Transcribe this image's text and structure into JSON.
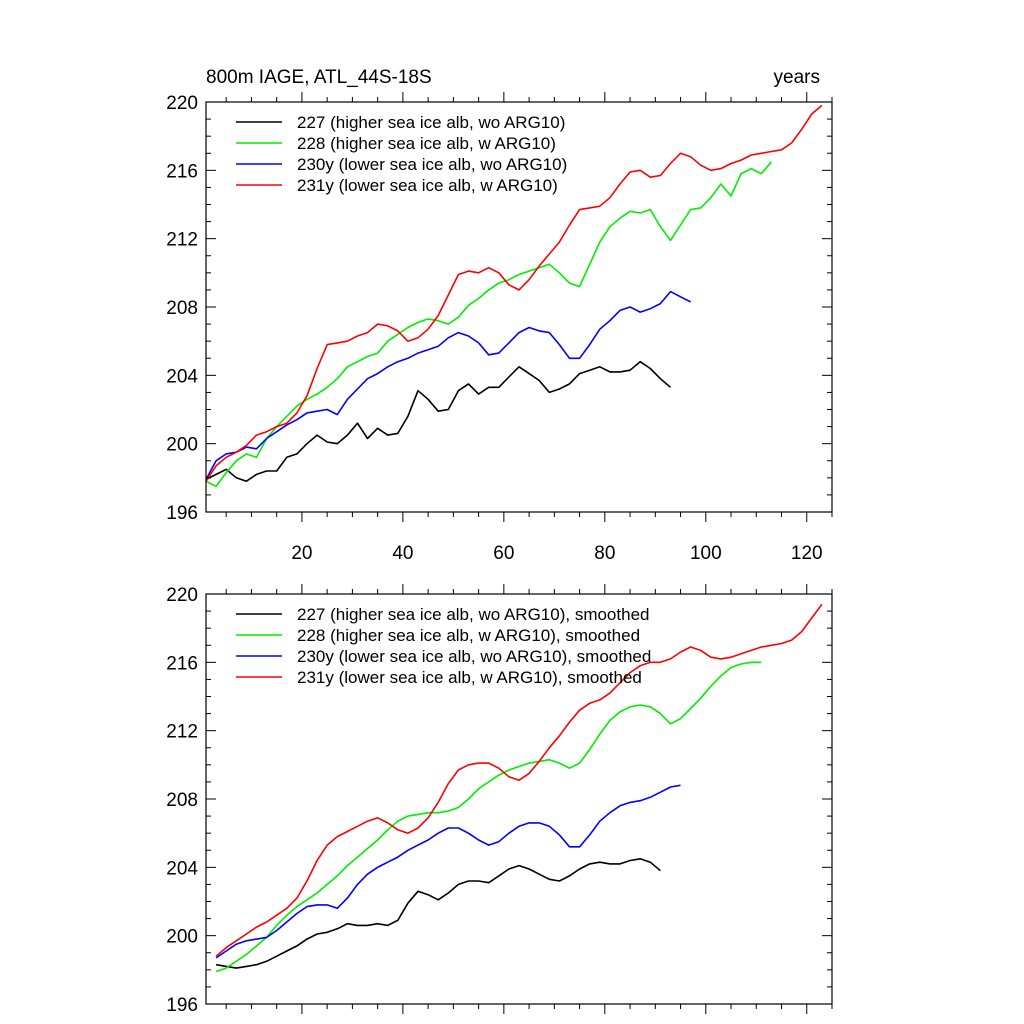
{
  "chart_data": [
    {
      "type": "line",
      "title": "800m IAGE, ATL_44S-18S",
      "title_right": "years",
      "xlim": [
        1,
        125
      ],
      "ylim": [
        196,
        220
      ],
      "xticks": [
        20,
        40,
        60,
        80,
        100,
        120
      ],
      "yticks": [
        196,
        200,
        204,
        208,
        212,
        216,
        220
      ],
      "show_xtick_labels": true,
      "legend_position": "top-left",
      "series": [
        {
          "name": "227 (higher sea ice alb, wo ARG10)",
          "color": "#000000",
          "x": [
            1,
            3,
            5,
            7,
            9,
            11,
            13,
            15,
            17,
            19,
            21,
            23,
            25,
            27,
            29,
            31,
            33,
            35,
            37,
            39,
            41,
            43,
            45,
            47,
            49,
            51,
            53,
            55,
            57,
            59,
            61,
            63,
            65,
            67,
            69,
            71,
            73,
            75,
            77,
            79,
            81,
            83,
            85,
            87,
            89,
            91,
            93
          ],
          "y": [
            197.9,
            198.2,
            198.5,
            198.0,
            197.8,
            198.2,
            198.4,
            198.4,
            199.2,
            199.4,
            200.0,
            200.5,
            200.1,
            200.0,
            200.5,
            201.2,
            200.3,
            200.9,
            200.5,
            200.6,
            201.6,
            203.1,
            202.6,
            201.9,
            202.0,
            203.1,
            203.5,
            202.9,
            203.3,
            203.3,
            203.9,
            204.5,
            204.1,
            203.7,
            203.0,
            203.2,
            203.5,
            204.1,
            204.3,
            204.5,
            204.2,
            204.2,
            204.3,
            204.8,
            204.4,
            203.8,
            203.3
          ]
        },
        {
          "name": "228 (higher sea ice alb, w ARG10)",
          "color": "#00ee00",
          "x": [
            1,
            3,
            5,
            7,
            9,
            11,
            13,
            15,
            17,
            19,
            21,
            23,
            25,
            27,
            29,
            31,
            33,
            35,
            37,
            39,
            41,
            43,
            45,
            47,
            49,
            51,
            53,
            55,
            57,
            59,
            61,
            63,
            65,
            67,
            69,
            71,
            73,
            75,
            77,
            79,
            81,
            83,
            85,
            87,
            89,
            91,
            93,
            95,
            97,
            99,
            101,
            103,
            105,
            107,
            109,
            111,
            113
          ],
          "y": [
            197.8,
            197.5,
            198.3,
            199.0,
            199.4,
            199.2,
            200.3,
            201.0,
            201.6,
            202.2,
            202.6,
            202.9,
            203.3,
            203.8,
            204.5,
            204.8,
            205.1,
            205.3,
            206.0,
            206.4,
            206.8,
            207.1,
            207.3,
            207.2,
            207.0,
            207.4,
            208.1,
            208.5,
            209.0,
            209.4,
            209.6,
            209.9,
            210.1,
            210.3,
            210.5,
            210.0,
            209.4,
            209.2,
            210.5,
            211.8,
            212.7,
            213.2,
            213.6,
            213.5,
            213.7,
            212.7,
            211.9,
            212.8,
            213.7,
            213.8,
            214.4,
            215.2,
            214.5,
            215.8,
            216.1,
            215.8,
            216.5
          ]
        },
        {
          "name": "230y (lower sea ice alb, wo ARG10)",
          "color": "#0000ff",
          "x": [
            1,
            3,
            5,
            7,
            9,
            11,
            13,
            15,
            17,
            19,
            21,
            23,
            25,
            27,
            29,
            31,
            33,
            35,
            37,
            39,
            41,
            43,
            45,
            47,
            49,
            51,
            53,
            55,
            57,
            59,
            61,
            63,
            65,
            67,
            69,
            71,
            73,
            75,
            77,
            79,
            81,
            83,
            85,
            87,
            89,
            91,
            93,
            95,
            97
          ],
          "y": [
            197.9,
            199.0,
            199.4,
            199.5,
            199.8,
            199.7,
            200.3,
            200.7,
            201.1,
            201.4,
            201.8,
            201.9,
            202.0,
            201.7,
            202.6,
            203.2,
            203.8,
            204.1,
            204.5,
            204.8,
            205.0,
            205.3,
            205.5,
            205.7,
            206.2,
            206.5,
            206.3,
            205.9,
            205.2,
            205.3,
            205.9,
            206.5,
            206.8,
            206.6,
            206.5,
            205.8,
            205.0,
            205.0,
            205.8,
            206.7,
            207.2,
            207.8,
            208.0,
            207.7,
            207.9,
            208.2,
            208.9,
            208.6,
            208.3
          ]
        },
        {
          "name": "231y (lower sea ice alb, w ARG10)",
          "color": "#ff0000",
          "x": [
            1,
            3,
            5,
            7,
            9,
            11,
            13,
            15,
            17,
            19,
            21,
            23,
            25,
            27,
            29,
            31,
            33,
            35,
            37,
            39,
            41,
            43,
            45,
            47,
            49,
            51,
            53,
            55,
            57,
            59,
            61,
            63,
            65,
            67,
            69,
            71,
            73,
            75,
            77,
            79,
            81,
            83,
            85,
            87,
            89,
            91,
            93,
            95,
            97,
            99,
            101,
            103,
            105,
            107,
            109,
            111,
            113,
            115,
            117,
            119,
            121,
            123
          ],
          "y": [
            197.8,
            198.7,
            199.2,
            199.5,
            199.9,
            200.5,
            200.7,
            201.0,
            201.2,
            201.8,
            202.8,
            204.4,
            205.8,
            205.9,
            206.0,
            206.3,
            206.5,
            207.0,
            206.9,
            206.6,
            206.0,
            206.2,
            206.7,
            207.5,
            208.7,
            209.9,
            210.1,
            210.0,
            210.3,
            210.0,
            209.3,
            209.0,
            209.6,
            210.4,
            211.1,
            211.8,
            212.8,
            213.7,
            213.8,
            213.9,
            214.4,
            215.2,
            215.9,
            216.0,
            215.6,
            215.7,
            216.4,
            217.0,
            216.8,
            216.3,
            216.0,
            216.1,
            216.4,
            216.6,
            216.9,
            217.0,
            217.1,
            217.2,
            217.6,
            218.4,
            219.3,
            219.8
          ]
        }
      ]
    },
    {
      "type": "line",
      "title": "",
      "xlim": [
        1,
        125
      ],
      "ylim": [
        196,
        220
      ],
      "xticks": [
        20,
        40,
        60,
        80,
        100,
        120
      ],
      "yticks": [
        196,
        200,
        204,
        208,
        212,
        216,
        220
      ],
      "show_xtick_labels": false,
      "legend_position": "top-left",
      "series": [
        {
          "name": "227 (higher sea ice alb, wo ARG10), smoothed",
          "color": "#000000",
          "x": [
            3,
            5,
            7,
            9,
            11,
            13,
            15,
            17,
            19,
            21,
            23,
            25,
            27,
            29,
            31,
            33,
            35,
            37,
            39,
            41,
            43,
            45,
            47,
            49,
            51,
            53,
            55,
            57,
            59,
            61,
            63,
            65,
            67,
            69,
            71,
            73,
            75,
            77,
            79,
            81,
            83,
            85,
            87,
            89,
            91
          ],
          "y": [
            198.3,
            198.2,
            198.1,
            198.2,
            198.3,
            198.5,
            198.8,
            199.1,
            199.4,
            199.8,
            200.1,
            200.2,
            200.4,
            200.7,
            200.6,
            200.6,
            200.7,
            200.6,
            200.9,
            201.9,
            202.6,
            202.4,
            202.1,
            202.5,
            203.0,
            203.2,
            203.2,
            203.1,
            203.5,
            203.9,
            204.1,
            203.9,
            203.6,
            203.3,
            203.2,
            203.5,
            203.9,
            204.2,
            204.3,
            204.2,
            204.2,
            204.4,
            204.5,
            204.3,
            203.8
          ]
        },
        {
          "name": "228 (higher sea ice alb, w ARG10), smoothed",
          "color": "#00ee00",
          "x": [
            3,
            5,
            7,
            9,
            11,
            13,
            15,
            17,
            19,
            21,
            23,
            25,
            27,
            29,
            31,
            33,
            35,
            37,
            39,
            41,
            43,
            45,
            47,
            49,
            51,
            53,
            55,
            57,
            59,
            61,
            63,
            65,
            67,
            69,
            71,
            73,
            75,
            77,
            79,
            81,
            83,
            85,
            87,
            89,
            91,
            93,
            95,
            97,
            99,
            101,
            103,
            105,
            107,
            109,
            111
          ],
          "y": [
            197.9,
            198.1,
            198.5,
            198.9,
            199.4,
            199.9,
            200.6,
            201.2,
            201.7,
            202.1,
            202.5,
            203.0,
            203.5,
            204.1,
            204.6,
            205.1,
            205.6,
            206.2,
            206.7,
            207.0,
            207.1,
            207.2,
            207.2,
            207.3,
            207.5,
            208.0,
            208.6,
            209.0,
            209.4,
            209.7,
            209.9,
            210.1,
            210.2,
            210.3,
            210.1,
            209.8,
            210.1,
            210.9,
            211.8,
            212.6,
            213.1,
            213.4,
            213.5,
            213.4,
            213.0,
            212.4,
            212.7,
            213.3,
            213.9,
            214.6,
            215.2,
            215.7,
            215.9,
            216.0,
            216.0
          ]
        },
        {
          "name": "230y (lower sea ice alb, wo ARG10), smoothed",
          "color": "#0000ff",
          "x": [
            3,
            5,
            7,
            9,
            11,
            13,
            15,
            17,
            19,
            21,
            23,
            25,
            27,
            29,
            31,
            33,
            35,
            37,
            39,
            41,
            43,
            45,
            47,
            49,
            51,
            53,
            55,
            57,
            59,
            61,
            63,
            65,
            67,
            69,
            71,
            73,
            75,
            77,
            79,
            81,
            83,
            85,
            87,
            89,
            91,
            93,
            95
          ],
          "y": [
            198.7,
            199.1,
            199.5,
            199.7,
            199.8,
            199.9,
            200.3,
            200.8,
            201.3,
            201.7,
            201.8,
            201.8,
            201.6,
            202.2,
            203.0,
            203.6,
            204.0,
            204.3,
            204.6,
            205.0,
            205.3,
            205.6,
            206.0,
            206.3,
            206.3,
            206.0,
            205.6,
            205.3,
            205.5,
            206.0,
            206.4,
            206.6,
            206.6,
            206.4,
            205.9,
            205.2,
            205.2,
            205.9,
            206.7,
            207.2,
            207.6,
            207.8,
            207.9,
            208.1,
            208.4,
            208.7,
            208.8
          ]
        },
        {
          "name": "231y (lower sea ice alb, w ARG10), smoothed",
          "color": "#ff0000",
          "x": [
            3,
            5,
            7,
            9,
            11,
            13,
            15,
            17,
            19,
            21,
            23,
            25,
            27,
            29,
            31,
            33,
            35,
            37,
            39,
            41,
            43,
            45,
            47,
            49,
            51,
            53,
            55,
            57,
            59,
            61,
            63,
            65,
            67,
            69,
            71,
            73,
            75,
            77,
            79,
            81,
            83,
            85,
            87,
            89,
            91,
            93,
            95,
            97,
            99,
            101,
            103,
            105,
            107,
            109,
            111,
            113,
            115,
            117,
            119,
            121,
            123
          ],
          "y": [
            198.8,
            199.3,
            199.7,
            200.1,
            200.5,
            200.8,
            201.2,
            201.6,
            202.2,
            203.2,
            204.4,
            205.3,
            205.8,
            206.1,
            206.4,
            206.7,
            206.9,
            206.6,
            206.2,
            206.0,
            206.3,
            206.9,
            207.8,
            208.9,
            209.7,
            210.0,
            210.1,
            210.1,
            209.8,
            209.3,
            209.1,
            209.5,
            210.2,
            211.0,
            211.7,
            212.5,
            213.2,
            213.6,
            213.8,
            214.2,
            214.8,
            215.4,
            215.8,
            216.0,
            216.0,
            216.2,
            216.6,
            216.9,
            216.7,
            216.3,
            216.2,
            216.3,
            216.5,
            216.7,
            216.9,
            217.0,
            217.1,
            217.3,
            217.8,
            218.6,
            219.4
          ]
        }
      ]
    }
  ]
}
